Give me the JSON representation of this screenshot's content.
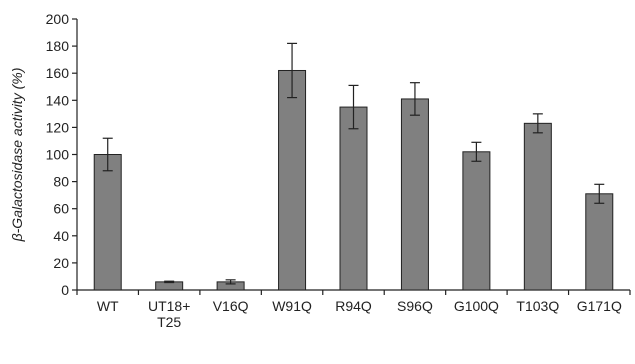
{
  "chart_data": {
    "type": "bar",
    "title": "",
    "ylabel": "β-Galactosidase activity (%)",
    "xlabel": "",
    "ylim": [
      0,
      200
    ],
    "yticks": [
      0,
      20,
      40,
      60,
      80,
      100,
      120,
      140,
      160,
      180,
      200
    ],
    "categories": [
      "WT",
      "UT18+ T25",
      "V16Q",
      "W91Q",
      "R94Q",
      "S96Q",
      "G100Q",
      "T103Q",
      "G171Q"
    ],
    "category_lines": [
      [
        "WT"
      ],
      [
        "UT18+",
        "T25"
      ],
      [
        "V16Q"
      ],
      [
        "W91Q"
      ],
      [
        "R94Q"
      ],
      [
        "S96Q"
      ],
      [
        "G100Q"
      ],
      [
        "T103Q"
      ],
      [
        "G171Q"
      ]
    ],
    "values": [
      100,
      6,
      6,
      162,
      135,
      141,
      102,
      123,
      71
    ],
    "errors": [
      12,
      0.5,
      1.5,
      20,
      16,
      12,
      7,
      7,
      7
    ],
    "bar_color": "#808080",
    "bar_stroke": "#222222",
    "grid": false,
    "legend": "none"
  }
}
